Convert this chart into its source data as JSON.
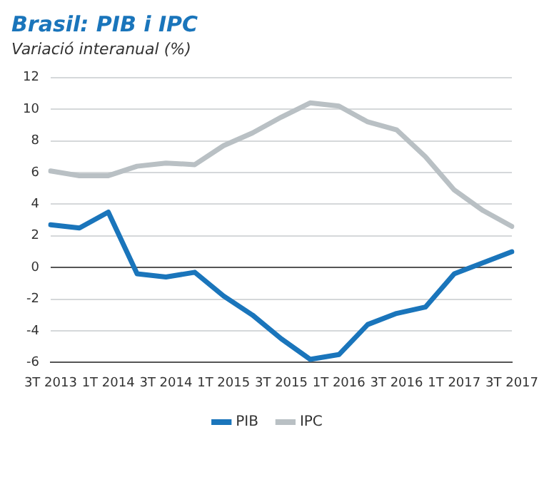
{
  "chart_data": {
    "type": "line",
    "title": "Brasil: PIB i IPC",
    "subtitle": "Variació interanual (%)",
    "categories": [
      "3T 2013",
      null,
      "1T 2014",
      null,
      "3T 2014",
      null,
      "1T 2015",
      null,
      "3T 2015",
      null,
      "1T 2016",
      null,
      "3T 2016",
      null,
      "1T 2017",
      null,
      "3T 2017"
    ],
    "series": [
      {
        "name": "PIB",
        "color": "#1a75bb",
        "values": [
          2.7,
          2.5,
          3.5,
          -0.4,
          -0.6,
          -0.3,
          -1.8,
          -3.0,
          -4.5,
          -5.8,
          -5.5,
          -3.6,
          -2.9,
          -2.5,
          -0.4,
          0.3,
          1.0
        ]
      },
      {
        "name": "IPC",
        "color": "#b9c0c4",
        "values": [
          6.1,
          5.8,
          5.8,
          6.4,
          6.6,
          6.5,
          7.7,
          8.5,
          9.5,
          10.4,
          10.2,
          9.2,
          8.7,
          7.0,
          4.9,
          3.6,
          2.6
        ]
      }
    ],
    "ylim": [
      -6,
      12
    ],
    "yticks": [
      -6,
      -4,
      -2,
      0,
      2,
      4,
      6,
      8,
      10,
      12
    ],
    "grid": "y",
    "legend": "bottom",
    "marker": "none",
    "line_style": "solid"
  }
}
